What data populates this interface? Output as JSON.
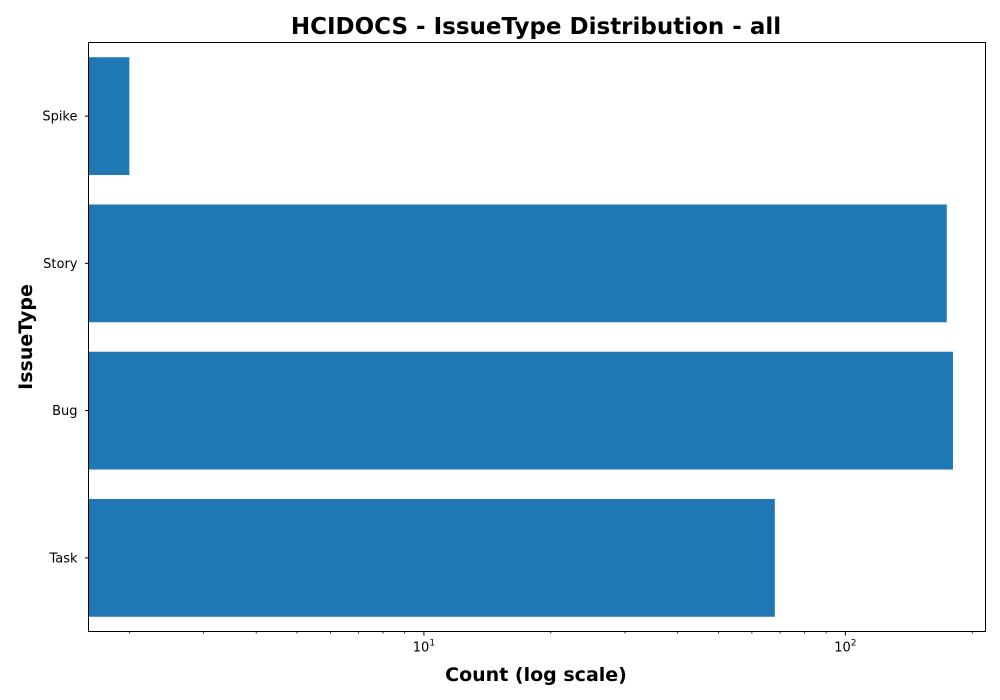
{
  "chart_data": {
    "type": "bar",
    "orientation": "horizontal",
    "title": "HCIDOCS - IssueType Distribution - all",
    "xlabel": "Count (log scale)",
    "ylabel": "IssueType",
    "x_scale": "log",
    "xlim": [
      1.6,
      215
    ],
    "categories": [
      "Task",
      "Bug",
      "Story",
      "Spike"
    ],
    "values": [
      68,
      180,
      174,
      2
    ],
    "x_ticks": [
      {
        "base": "10",
        "exp": "1",
        "value": 10
      },
      {
        "base": "10",
        "exp": "2",
        "value": 100
      }
    ],
    "bar_color": "#1f77b4",
    "grid": false,
    "legend": "none"
  }
}
